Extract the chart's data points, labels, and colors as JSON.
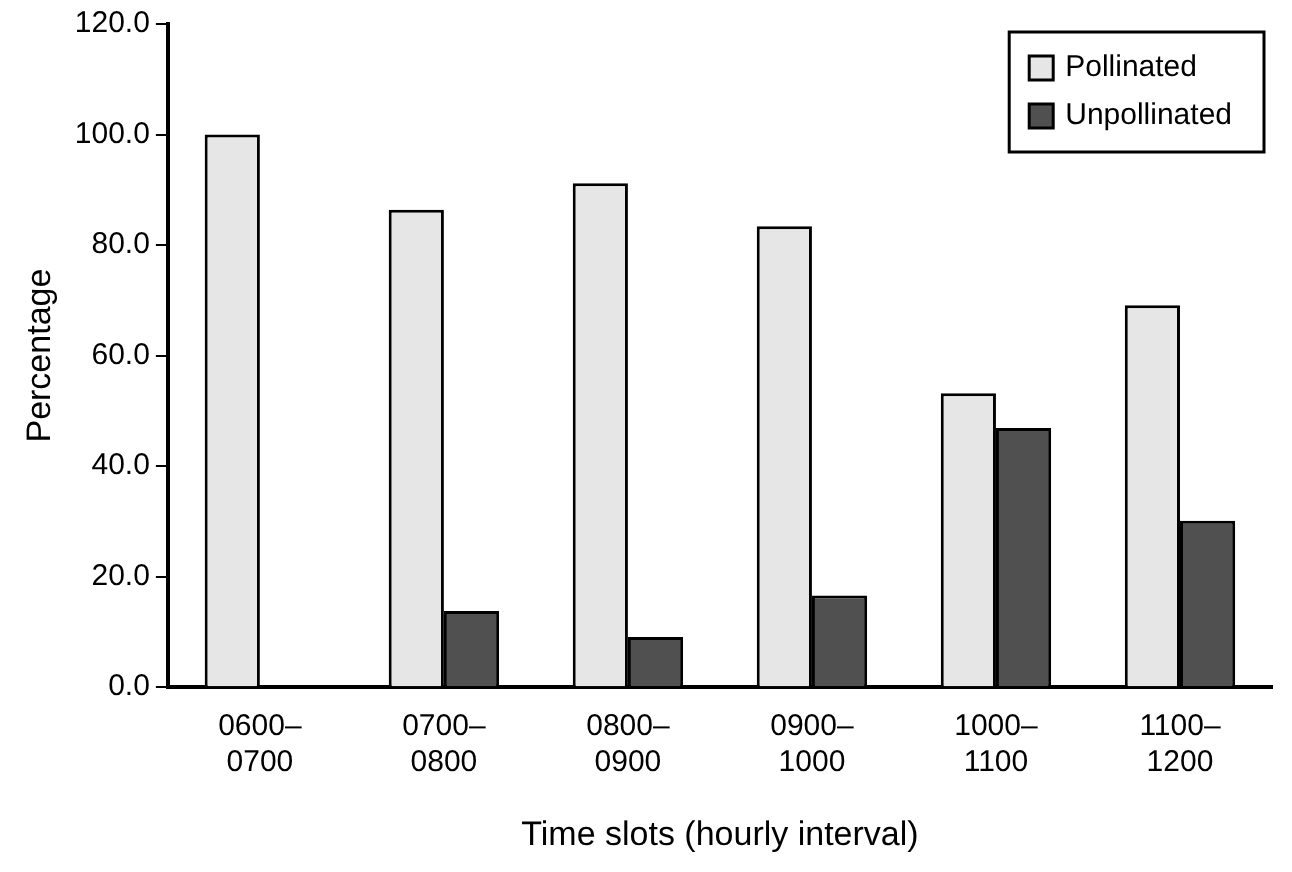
{
  "chart_data": {
    "type": "bar",
    "xlabel": "Time slots (hourly interval)",
    "ylabel": "Percentage",
    "categories": [
      "0600–0700",
      "0700–0800",
      "0800–0900",
      "0900–1000",
      "1000–1100",
      "1100–1200"
    ],
    "series": [
      {
        "name": "Pollinated",
        "color": "#e6e6e6",
        "values": [
          100,
          86.4,
          91.2,
          83.4,
          53.2,
          69.1
        ]
      },
      {
        "name": "Unpollinated",
        "color": "#505050",
        "values": [
          0,
          13.8,
          9.1,
          16.6,
          46.9,
          30.1
        ]
      }
    ],
    "ylim": [
      0,
      120
    ],
    "yticks": [
      {
        "value": 0,
        "label": "0.0"
      },
      {
        "value": 20,
        "label": "20.0"
      },
      {
        "value": 40,
        "label": "40.0"
      },
      {
        "value": 60,
        "label": "60.0"
      },
      {
        "value": 80,
        "label": "80.0"
      },
      {
        "value": 100,
        "label": "100.0"
      },
      {
        "value": 120,
        "label": "120.0"
      }
    ],
    "grid": false,
    "legend": "top right"
  }
}
